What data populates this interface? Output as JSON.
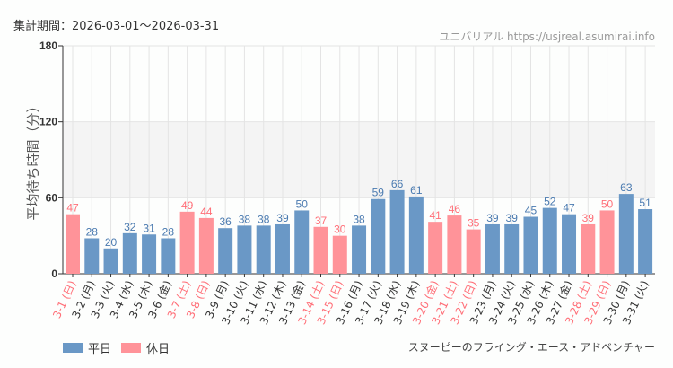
{
  "header": {
    "period": "集計期間：2026-03-01～2026-03-31",
    "source": "ユニバリアル  https://usjreal.asumirai.info"
  },
  "footer": {
    "attraction": "スヌーピーのフライング・エース・アドベンチャー"
  },
  "colors": {
    "weekday": "#6a98c6",
    "holiday": "#ff9399",
    "weekday_label": "#4a7ab0",
    "holiday_label": "#ff6f78",
    "band": "#f4f4f4"
  },
  "chart_data": {
    "type": "bar",
    "ylabel": "平均待ち時間（分）",
    "ylim": [
      0,
      180
    ],
    "yticks": [
      0,
      60,
      120,
      180
    ],
    "shaded_band": [
      60,
      120
    ],
    "grid": true,
    "legend_placement": "bottom-left",
    "legend": [
      {
        "name": "平日",
        "key": "weekday"
      },
      {
        "name": "休日",
        "key": "holiday"
      }
    ],
    "categories": [
      "3-1 (日)",
      "3-2 (月)",
      "3-3 (火)",
      "3-4 (水)",
      "3-5 (木)",
      "3-6 (金)",
      "3-7 (土)",
      "3-8 (日)",
      "3-9 (月)",
      "3-10 (火)",
      "3-11 (水)",
      "3-12 (木)",
      "3-13 (金)",
      "3-14 (土)",
      "3-15 (日)",
      "3-16 (月)",
      "3-17 (火)",
      "3-18 (水)",
      "3-19 (木)",
      "3-20 (金)",
      "3-21 (土)",
      "3-22 (日)",
      "3-23 (月)",
      "3-24 (火)",
      "3-25 (水)",
      "3-26 (木)",
      "3-27 (金)",
      "3-28 (土)",
      "3-29 (日)",
      "3-30 (月)",
      "3-31 (火)"
    ],
    "values": [
      47,
      28,
      20,
      32,
      31,
      28,
      49,
      44,
      36,
      38,
      38,
      39,
      50,
      37,
      30,
      38,
      59,
      66,
      61,
      41,
      46,
      35,
      39,
      39,
      45,
      52,
      47,
      39,
      50,
      63,
      51
    ],
    "holiday": [
      true,
      false,
      false,
      false,
      false,
      false,
      true,
      true,
      false,
      false,
      false,
      false,
      false,
      true,
      true,
      false,
      false,
      false,
      false,
      true,
      true,
      true,
      false,
      false,
      false,
      false,
      false,
      true,
      true,
      false,
      false
    ]
  }
}
